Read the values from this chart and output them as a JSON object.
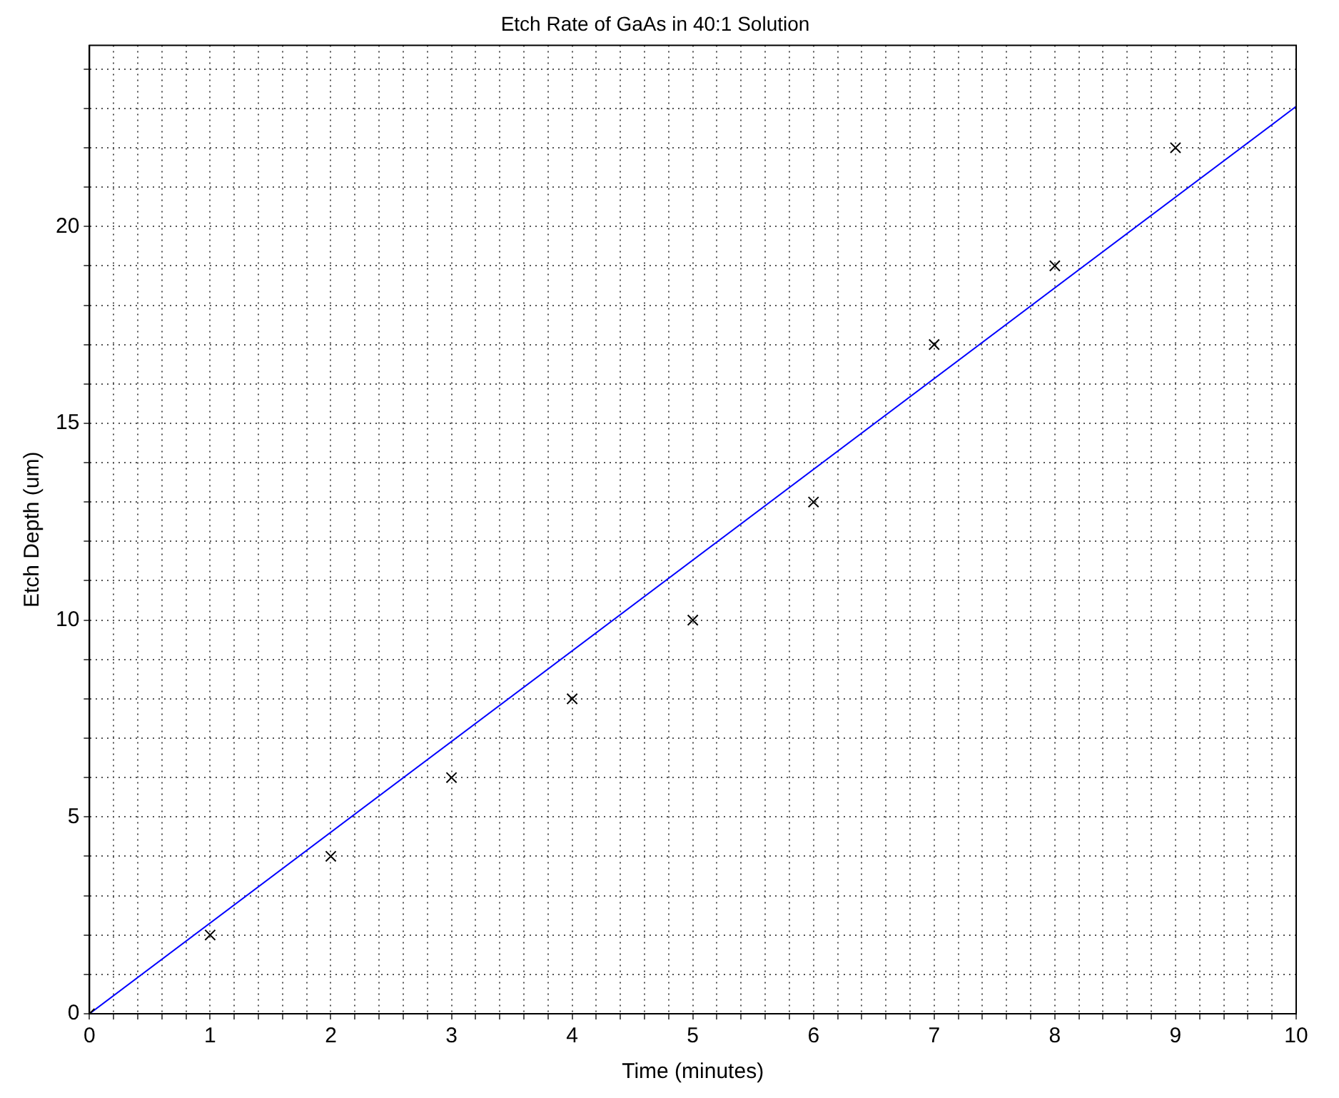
{
  "chart_data": {
    "type": "scatter",
    "title": "Etch Rate of GaAs in 40:1 Solution",
    "xlabel": "Time (minutes)",
    "ylabel": "Etch Depth (um)",
    "x": [
      0,
      1,
      2,
      3,
      4,
      5,
      6,
      7,
      8,
      9
    ],
    "series": [
      {
        "color": "#000000",
        "marker": "cross",
        "values": [
          0,
          2,
          4,
          6,
          8,
          10,
          13,
          17,
          19,
          22
        ]
      },
      {
        "type": "line",
        "color": "#0000ff",
        "marker": "none",
        "x": [
          0,
          10
        ],
        "values": [
          0,
          23.05
        ]
      }
    ],
    "xlim": [
      0,
      10
    ],
    "ylim": [
      0,
      24.6
    ],
    "xticks": [
      0,
      {
        "value": 0.2,
        "label": null
      },
      {
        "value": 0.4,
        "label": null
      },
      {
        "value": 0.6,
        "label": null
      },
      {
        "value": 0.8,
        "label": null
      },
      1,
      {
        "value": 1.2,
        "label": null
      },
      {
        "value": 1.4,
        "label": null
      },
      {
        "value": 1.6,
        "label": null
      },
      {
        "value": 1.8,
        "label": null
      },
      2,
      {
        "value": 2.2,
        "label": null
      },
      {
        "value": 2.4,
        "label": null
      },
      {
        "value": 2.6,
        "label": null
      },
      {
        "value": 2.8,
        "label": null
      },
      3,
      {
        "value": 3.2,
        "label": null
      },
      {
        "value": 3.4,
        "label": null
      },
      {
        "value": 3.6,
        "label": null
      },
      {
        "value": 3.8,
        "label": null
      },
      4,
      {
        "value": 4.2,
        "label": null
      },
      {
        "value": 4.4,
        "label": null
      },
      {
        "value": 4.6,
        "label": null
      },
      {
        "value": 4.8,
        "label": null
      },
      5,
      {
        "value": 5.2,
        "label": null
      },
      {
        "value": 5.4,
        "label": null
      },
      {
        "value": 5.6,
        "label": null
      },
      {
        "value": 5.8,
        "label": null
      },
      6,
      {
        "value": 6.2,
        "label": null
      },
      {
        "value": 6.4,
        "label": null
      },
      {
        "value": 6.6,
        "label": null
      },
      {
        "value": 6.8,
        "label": null
      },
      7,
      {
        "value": 7.2,
        "label": null
      },
      {
        "value": 7.4,
        "label": null
      },
      {
        "value": 7.6,
        "label": null
      },
      {
        "value": 7.8,
        "label": null
      },
      8,
      {
        "value": 8.2,
        "label": null
      },
      {
        "value": 8.4,
        "label": null
      },
      {
        "value": 8.6,
        "label": null
      },
      {
        "value": 8.8,
        "label": null
      },
      9,
      {
        "value": 9.2,
        "label": null
      },
      {
        "value": 9.4,
        "label": null
      },
      {
        "value": 9.6,
        "label": null
      },
      {
        "value": 9.8,
        "label": null
      },
      10
    ],
    "yticks": [
      0,
      {
        "value": 1,
        "label": null
      },
      {
        "value": 2,
        "label": null
      },
      {
        "value": 3,
        "label": null
      },
      {
        "value": 4,
        "label": null
      },
      5,
      {
        "value": 6,
        "label": null
      },
      {
        "value": 7,
        "label": null
      },
      {
        "value": 8,
        "label": null
      },
      {
        "value": 9,
        "label": null
      },
      10,
      {
        "value": 11,
        "label": null
      },
      {
        "value": 12,
        "label": null
      },
      {
        "value": 13,
        "label": null
      },
      {
        "value": 14,
        "label": null
      },
      15,
      {
        "value": 16,
        "label": null
      },
      {
        "value": 17,
        "label": null
      },
      {
        "value": 18,
        "label": null
      },
      {
        "value": 19,
        "label": null
      },
      20,
      {
        "value": 21,
        "label": null
      },
      {
        "value": 22,
        "label": null
      },
      {
        "value": 23,
        "label": null
      },
      {
        "value": 24,
        "label": null
      }
    ],
    "grid": true,
    "legend": false,
    "line_style": "solid"
  }
}
